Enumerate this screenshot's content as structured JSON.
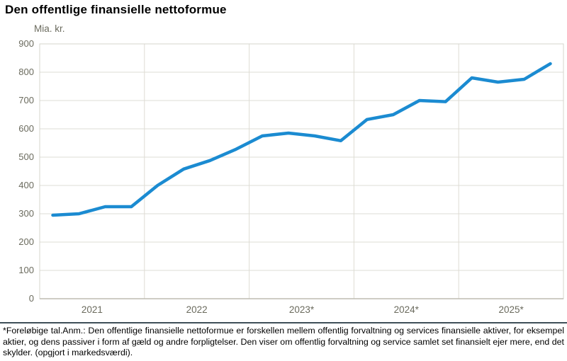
{
  "title": "Den offentlige finansielle nettoformue",
  "y_axis": {
    "unit": "Mia. kr.",
    "ticks": [
      "900",
      "800",
      "700",
      "600",
      "500",
      "400",
      "300",
      "200",
      "100",
      "0"
    ]
  },
  "x_axis": {
    "labels": [
      "2021",
      "2022",
      "2023*",
      "2024*",
      "2025*"
    ]
  },
  "chart_data": {
    "type": "line",
    "title": "Den offentlige finansielle nettoformue",
    "ylabel": "Mia. kr.",
    "ylim": [
      0,
      900
    ],
    "y_tick_step": 100,
    "grid": true,
    "legend_position": "none",
    "x": [
      "2021Q1",
      "2021Q2",
      "2021Q3",
      "2021Q4",
      "2022Q1",
      "2022Q2",
      "2022Q3",
      "2022Q4",
      "2023Q1",
      "2023Q2",
      "2023Q3",
      "2023Q4",
      "2024Q1",
      "2024Q2",
      "2024Q3",
      "2024Q4",
      "2025Q1",
      "2025Q2",
      "2025Q3",
      "2025Q4"
    ],
    "values": [
      295,
      300,
      325,
      325,
      400,
      458,
      488,
      528,
      575,
      585,
      575,
      558,
      633,
      650,
      700,
      696,
      780,
      765,
      775,
      830
    ],
    "x_group_labels": [
      "2021",
      "2022",
      "2023*",
      "2024*",
      "2025*"
    ],
    "line_color": "#1b8bd1",
    "grid_color": "#dedcd4",
    "border_color": "#d6d4cc",
    "axis_color": "#bdbbb2",
    "label_color": "#6b6b5e"
  },
  "footnote": "*Foreløbige tal.Anm.: Den offentlige finansielle nettoformue er forskellen mellem offentlig forvaltning og services finansielle aktiver, for eksempel aktier, og dens passiver i form af gæld og andre forpligtelser. Den viser om offentlig forvaltning og service samlet set finansielt ejer mere, end det skylder. (opgjort i markedsværdi)."
}
